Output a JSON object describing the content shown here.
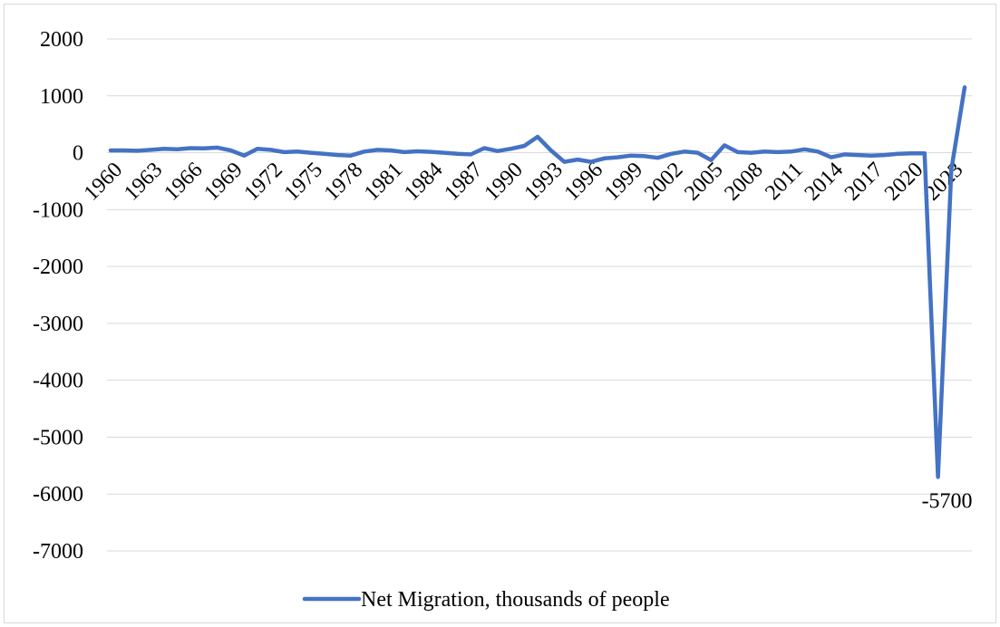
{
  "chart_data": {
    "type": "line",
    "title": "",
    "xlabel": "",
    "ylabel": "",
    "ylim": [
      -7000,
      2000
    ],
    "y_ticks": [
      2000,
      1000,
      0,
      -1000,
      -2000,
      -3000,
      -4000,
      -5000,
      -6000,
      -7000
    ],
    "y_tick_labels": [
      "2000",
      "1000",
      "0",
      "-1000",
      "-2000",
      "-3000",
      "-4000",
      "-5000",
      "-6000",
      "-7000"
    ],
    "grid": "horizontal",
    "legend_position": "bottom",
    "line_color": "#4472c4",
    "x_tick_labels": [
      "1960",
      "1963",
      "1966",
      "1969",
      "1972",
      "1975",
      "1978",
      "1981",
      "1984",
      "1987",
      "1990",
      "1993",
      "1996",
      "1999",
      "2002",
      "2005",
      "2008",
      "2011",
      "2014",
      "2017",
      "2020",
      "2023"
    ],
    "data_label": {
      "year": 2022,
      "text": "-5700"
    },
    "series": [
      {
        "name": "Net Migration, thousands of people",
        "x": [
          1960,
          1961,
          1962,
          1963,
          1964,
          1965,
          1966,
          1967,
          1968,
          1969,
          1970,
          1971,
          1972,
          1973,
          1974,
          1975,
          1976,
          1977,
          1978,
          1979,
          1980,
          1981,
          1982,
          1983,
          1984,
          1985,
          1986,
          1987,
          1988,
          1989,
          1990,
          1991,
          1992,
          1993,
          1994,
          1995,
          1996,
          1997,
          1998,
          1999,
          2000,
          2001,
          2002,
          2003,
          2004,
          2005,
          2006,
          2007,
          2008,
          2009,
          2010,
          2011,
          2012,
          2013,
          2014,
          2015,
          2016,
          2017,
          2018,
          2019,
          2020,
          2021,
          2022,
          2023,
          2024
        ],
        "values": [
          40,
          40,
          35,
          50,
          70,
          60,
          80,
          75,
          90,
          40,
          -50,
          70,
          50,
          10,
          20,
          0,
          -20,
          -40,
          -50,
          20,
          50,
          40,
          10,
          25,
          15,
          0,
          -20,
          -30,
          80,
          30,
          70,
          120,
          280,
          40,
          -160,
          -120,
          -160,
          -100,
          -80,
          -50,
          -60,
          -90,
          -20,
          20,
          0,
          -130,
          130,
          10,
          0,
          20,
          10,
          20,
          60,
          20,
          -80,
          -30,
          -40,
          -50,
          -40,
          -20,
          -10,
          -10,
          -5700,
          -300,
          1150
        ]
      }
    ]
  }
}
